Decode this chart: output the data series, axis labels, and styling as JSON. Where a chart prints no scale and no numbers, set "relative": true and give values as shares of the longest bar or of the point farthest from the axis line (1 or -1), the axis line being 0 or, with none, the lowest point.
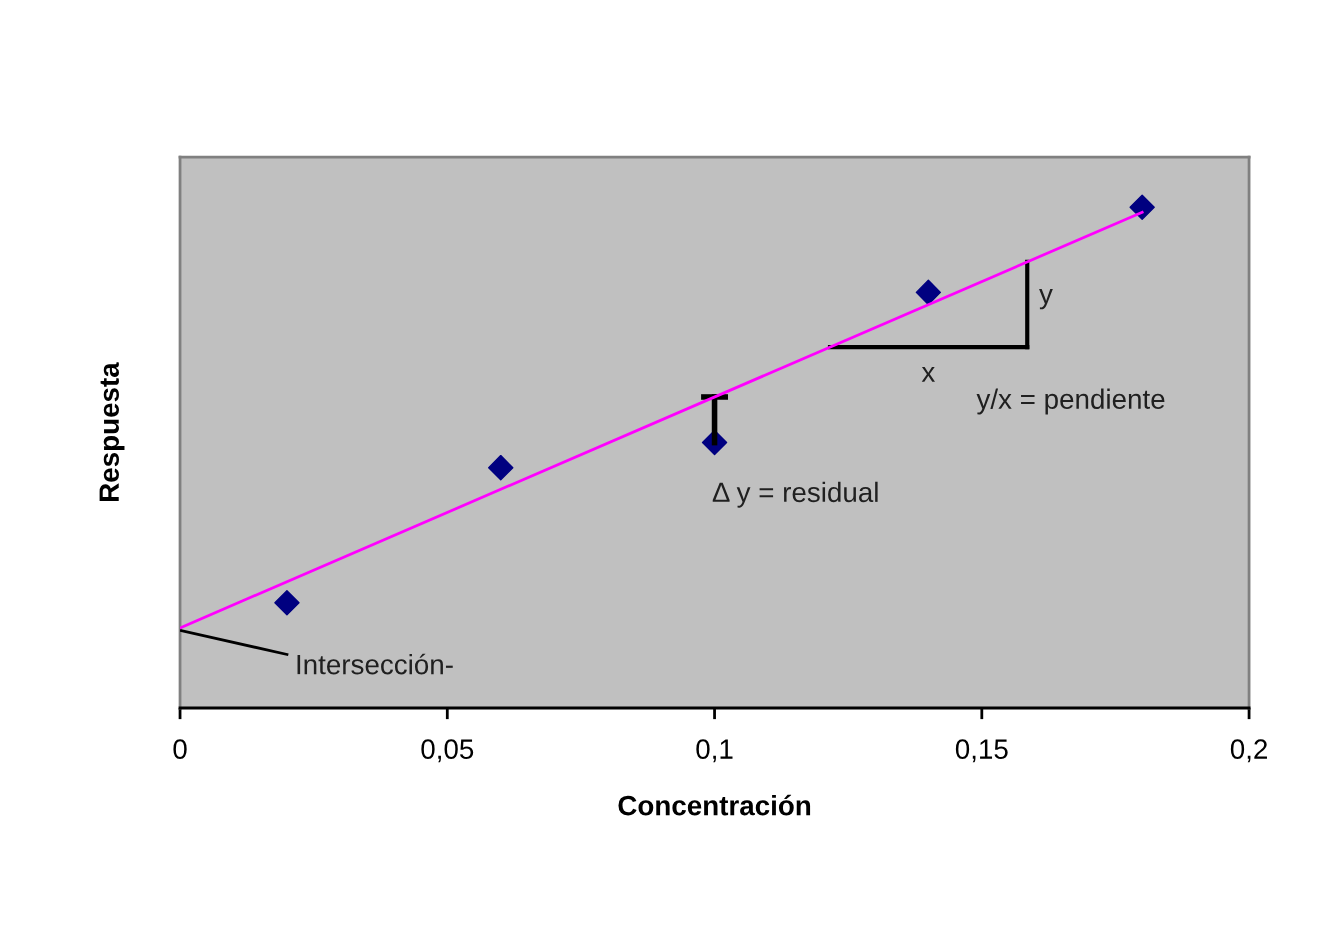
{
  "chart_data": {
    "type": "scatter",
    "xlabel": "Concentración",
    "ylabel": "Respuesta",
    "relative": true,
    "tick_labels": "x",
    "grid": false,
    "legend": false,
    "marker": "diamond",
    "x": [
      0.02,
      0.06,
      0.1,
      0.14,
      0.18
    ],
    "xlim": [
      0,
      0.2
    ],
    "xticks": [
      0,
      {
        "value": 0.05,
        "label": "0,05"
      },
      {
        "value": 0.1,
        "label": "0,1"
      },
      {
        "value": 0.15,
        "label": "0,15"
      },
      {
        "value": 0.2,
        "label": "0,2"
      }
    ],
    "series": [
      {
        "color": "#000080",
        "values": [
          0.21,
          0.48,
          0.53,
          0.83,
          1.0
        ]
      },
      {
        "type": "line",
        "color": "#ff00ff",
        "x": [
          0,
          0.18
        ],
        "values": [
          0.16,
          0.99
        ],
        "marker": "none"
      }
    ],
    "annotations": [
      "Intersección-",
      "Δ y = residual",
      "x",
      "y",
      "y/x = pendiente"
    ]
  }
}
